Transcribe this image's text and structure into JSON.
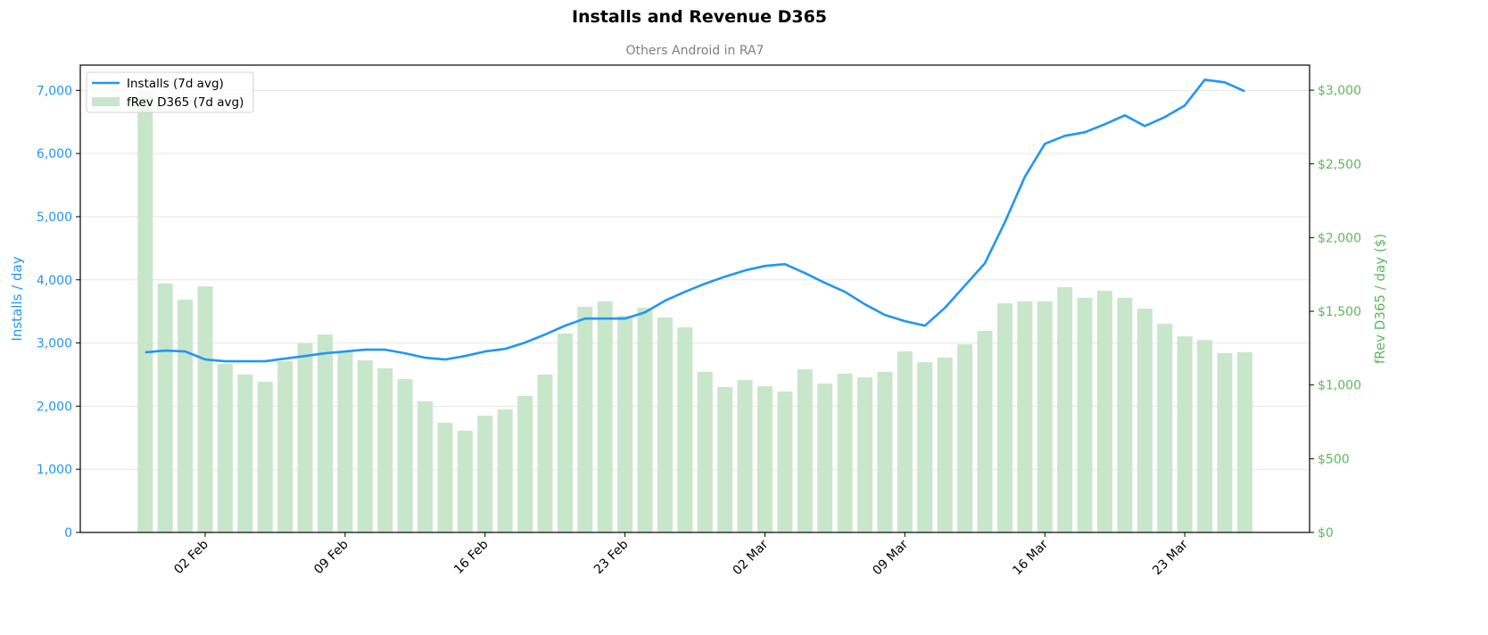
{
  "chart_data": {
    "type": "bar+line",
    "title": "Installs and Revenue D365",
    "subtitle": "Others Android in RA7",
    "ylabel_left": "Installs / day",
    "ylabel_right": "fRev D365 / day ($)",
    "ylim_left": [
      0,
      7400
    ],
    "ylim_right": [
      0,
      3170
    ],
    "yticks_left": [
      "0",
      "1,000",
      "2,000",
      "3,000",
      "4,000",
      "5,000",
      "6,000",
      "7,000"
    ],
    "yticks_right": [
      "$0",
      "$500",
      "$1,000",
      "$1,500",
      "$2,000",
      "$2,500",
      "$3,000"
    ],
    "xticks": [
      "02 Feb",
      "09 Feb",
      "16 Feb",
      "23 Feb",
      "02 Mar",
      "09 Mar",
      "16 Mar",
      "23 Mar"
    ],
    "grid": "horizontal",
    "legend_placement": "top-left",
    "colors": {
      "installs": "#2196F3",
      "revenue": "#C8E6C9",
      "right_axis": "#5CB85C",
      "left_axis": "#2196F3"
    },
    "dates": [
      "30 Jan",
      "31 Jan",
      "01 Feb",
      "02 Feb",
      "03 Feb",
      "04 Feb",
      "05 Feb",
      "06 Feb",
      "07 Feb",
      "08 Feb",
      "09 Feb",
      "10 Feb",
      "11 Feb",
      "12 Feb",
      "13 Feb",
      "14 Feb",
      "15 Feb",
      "16 Feb",
      "17 Feb",
      "18 Feb",
      "19 Feb",
      "20 Feb",
      "21 Feb",
      "22 Feb",
      "23 Feb",
      "24 Feb",
      "25 Feb",
      "26 Feb",
      "27 Feb",
      "28 Feb",
      "01 Mar",
      "02 Mar",
      "03 Mar",
      "04 Mar",
      "05 Mar",
      "06 Mar",
      "07 Mar",
      "08 Mar",
      "09 Mar",
      "10 Mar",
      "11 Mar",
      "12 Mar",
      "13 Mar",
      "14 Mar",
      "15 Mar",
      "16 Mar",
      "17 Mar",
      "18 Mar",
      "19 Mar",
      "20 Mar",
      "21 Mar",
      "22 Mar",
      "23 Mar",
      "24 Mar",
      "25 Mar",
      "26 Mar"
    ],
    "series": [
      {
        "name": "Installs (7d avg)",
        "type": "line",
        "axis": "left",
        "values": [
          2851,
          2879,
          2865,
          2738,
          2710,
          2710,
          2710,
          2752,
          2794,
          2837,
          2865,
          2893,
          2893,
          2837,
          2766,
          2738,
          2794,
          2865,
          2907,
          3006,
          3133,
          3274,
          3387,
          3387,
          3387,
          3486,
          3669,
          3810,
          3938,
          4050,
          4149,
          4220,
          4248,
          4107,
          3952,
          3810,
          3613,
          3444,
          3345,
          3274,
          3556,
          3909,
          4262,
          4911,
          5631,
          6153,
          6280,
          6337,
          6464,
          6605,
          6436,
          6577,
          6760,
          7169,
          7127,
          6986
        ]
      },
      {
        "name": "fRev D365 (7d avg)",
        "type": "bar",
        "axis": "right",
        "values": [
          3000,
          1688,
          1579,
          1669,
          1143,
          1071,
          1022,
          1161,
          1282,
          1343,
          1222,
          1167,
          1113,
          1040,
          889,
          744,
          690,
          792,
          835,
          926,
          1071,
          1349,
          1530,
          1567,
          1470,
          1524,
          1458,
          1391,
          1089,
          986,
          1034,
          992,
          956,
          1107,
          1010,
          1077,
          1052,
          1089,
          1228,
          1155,
          1186,
          1276,
          1367,
          1554,
          1567,
          1567,
          1663,
          1591,
          1639,
          1591,
          1518,
          1415,
          1330,
          1305,
          1216,
          1222
        ]
      }
    ]
  }
}
